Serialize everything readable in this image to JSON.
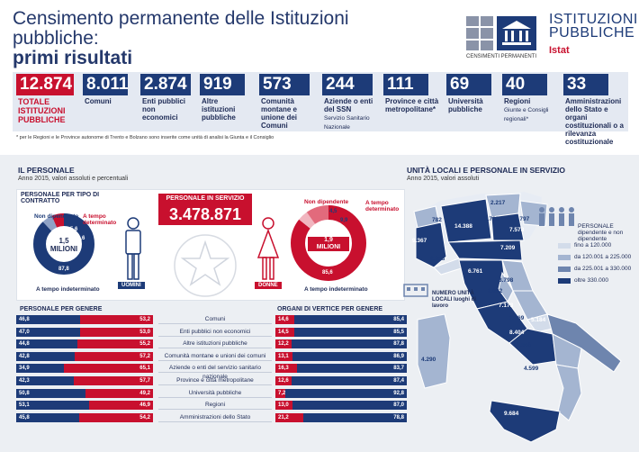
{
  "header": {
    "title_line1": "Censimento permanente delle Istituzioni pubbliche:",
    "title_line2": "primi risultati",
    "logo_census_caption": "CENSIMENTI PERMANENTI",
    "logo_ip_line1": "ISTITUZIONI",
    "logo_ip_line2": "PUBBLICHE",
    "logo_istat": "Istat"
  },
  "stats": [
    {
      "value": "12.874",
      "label": "TOTALE ISTITUZIONI PUBBLICHE",
      "sub": ""
    },
    {
      "value": "8.011",
      "label": "Comuni",
      "sub": ""
    },
    {
      "value": "2.874",
      "label": "Enti pubblici non economici",
      "sub": ""
    },
    {
      "value": "919",
      "label": "Altre istituzioni pubbliche",
      "sub": ""
    },
    {
      "value": "573",
      "label": "Comunità montane e unione dei Comuni",
      "sub": ""
    },
    {
      "value": "244",
      "label": "Aziende o enti del SSN",
      "sub": "Servizio Sanitario Nazionale"
    },
    {
      "value": "111",
      "label": "Province e città metropolitane*",
      "sub": ""
    },
    {
      "value": "69",
      "label": "Università pubbliche",
      "sub": ""
    },
    {
      "value": "40",
      "label": "Regioni",
      "sub": "Giunte e Consigli regionali*"
    },
    {
      "value": "33",
      "label": "Amministrazioni dello Stato e organi costituzionali o a rilevanza costituzionale",
      "sub": ""
    }
  ],
  "footnote": "* per le Regioni e le Province autonome di Trento e Bolzano sono inserite come unità di analisi la Giunta e il Consiglio",
  "personale": {
    "title": "IL PERSONALE",
    "subtitle": "Anno 2015, valori assoluti e percentuali",
    "contratto_title": "PERSONALE PER TIPO DI CONTRATTO",
    "servizio_label": "PERSONALE IN SERVIZIO",
    "servizio_value": "3.478.871",
    "uomini": {
      "label": "UOMINI",
      "center_value": "1,5",
      "center_unit": "MILIONI",
      "non_dip": "5,6",
      "tempo_det": "6,6",
      "tempo_ind": "87,8",
      "lbl_non_dip": "Non dipendente",
      "lbl_det": "A tempo determinato",
      "lbl_ind": "A tempo indeterminato"
    },
    "donne": {
      "label": "DONNE",
      "center_value": "1,9",
      "center_unit": "MILIONI",
      "non_dip": "4,5",
      "tempo_det": "9,9",
      "tempo_ind": "85,6",
      "lbl_non_dip": "Non dipendente",
      "lbl_det": "A tempo determinato",
      "lbl_ind": "A tempo indeterminato"
    },
    "genere_title": "PERSONALE PER GENERE",
    "vertice_title": "ORGANI DI VERTICE PER GENERE"
  },
  "chart_data": {
    "type": "bar",
    "categories": [
      "Comuni",
      "Enti pubblici non economici",
      "Altre istituzioni pubbliche",
      "Comunità montane e unioni dei comuni",
      "Aziende o enti del servizio sanitario nazionale",
      "Province e città metropolitane",
      "Università pubbliche",
      "Regioni",
      "Amministrazioni dello Stato"
    ],
    "series": [
      {
        "name": "personale_uomini",
        "values": [
          46.8,
          47.0,
          44.8,
          42.8,
          34.9,
          42.3,
          50.8,
          53.1,
          45.8
        ]
      },
      {
        "name": "personale_donne",
        "values": [
          53.2,
          53.0,
          55.2,
          57.2,
          65.1,
          57.7,
          49.2,
          46.9,
          54.2
        ]
      },
      {
        "name": "vertice_donne",
        "values": [
          14.6,
          14.5,
          12.2,
          13.1,
          16.3,
          12.6,
          7.2,
          13.0,
          21.2
        ]
      },
      {
        "name": "vertice_uomini",
        "values": [
          85.4,
          85.5,
          87.8,
          86.9,
          83.7,
          87.4,
          92.8,
          87.0,
          78.8
        ]
      }
    ]
  },
  "map": {
    "title": "UNITÀ LOCALI E PERSONALE IN SERVIZIO",
    "subtitle": "Anno 2015, valori assoluti",
    "legend_title": "PERSONALE dipendente e non dipendente",
    "legend": [
      {
        "label": "fino a 120.000",
        "color": "#d3dcea"
      },
      {
        "label": "da 120.001 a 225.000",
        "color": "#a4b5d1"
      },
      {
        "label": "da 225.001 a 330.000",
        "color": "#6e85ae"
      },
      {
        "label": "oltre 330.000",
        "color": "#1d3b78"
      }
    ],
    "units_label": "NUMERO UNITÀ LOCALI luoghi di lavoro",
    "regions": [
      {
        "value": "782",
        "color": "#a4b5d1"
      },
      {
        "value": "9.367",
        "color": "#1d3b78"
      },
      {
        "value": "2.858",
        "color": "#d3dcea"
      },
      {
        "value": "14.388",
        "color": "#1d3b78"
      },
      {
        "value": "2.217",
        "color": "#a4b5d1"
      },
      {
        "value": "1.739",
        "color": "#a4b5d1"
      },
      {
        "value": "7.578",
        "color": "#1d3b78"
      },
      {
        "value": "2.797",
        "color": "#a4b5d1"
      },
      {
        "value": "7.209",
        "color": "#1d3b78"
      },
      {
        "value": "6.761",
        "color": "#1d3b78"
      },
      {
        "value": "3.798",
        "color": "#a4b5d1"
      },
      {
        "value": "2.002",
        "color": "#a4b5d1"
      },
      {
        "value": "7.173",
        "color": "#1d3b78"
      },
      {
        "value": "1.069",
        "color": "#d3dcea"
      },
      {
        "value": "5.184",
        "color": "#6e85ae"
      },
      {
        "value": "8.404",
        "color": "#1d3b78"
      },
      {
        "value": "1.546",
        "color": "#a4b5d1"
      },
      {
        "value": "4.599",
        "color": "#a4b5d1"
      },
      {
        "value": "4.290",
        "color": "#a4b5d1"
      },
      {
        "value": "9.684",
        "color": "#1d3b78"
      }
    ]
  },
  "colors": {
    "blue": "#1d3b78",
    "red": "#c8102e",
    "band": "#eceff3"
  }
}
